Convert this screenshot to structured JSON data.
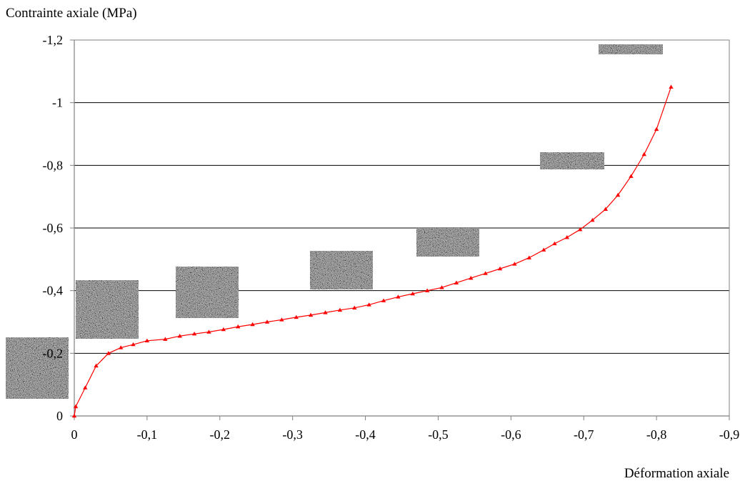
{
  "chart_data": {
    "type": "line",
    "ylabel": "Contrainte axiale (MPa)",
    "xlabel": "Déformation axiale",
    "xlim": [
      0,
      -0.9
    ],
    "ylim": [
      0,
      -1.2
    ],
    "x_ticks": [
      "0",
      "-0,1",
      "-0,2",
      "-0,3",
      "-0,4",
      "-0,5",
      "-0,6",
      "-0,7",
      "-0,8",
      "-0,9"
    ],
    "y_ticks": [
      "0",
      "-0,2",
      "-0,4",
      "-0,6",
      "-0,8",
      "-1",
      "-1,2"
    ],
    "grid": "horizontal",
    "series": [
      {
        "color": "#ff0000",
        "marker": "triangle",
        "x": [
          0,
          -0.002,
          -0.015,
          -0.03,
          -0.047,
          -0.064,
          -0.081,
          -0.1,
          -0.125,
          -0.145,
          -0.165,
          -0.185,
          -0.205,
          -0.225,
          -0.245,
          -0.265,
          -0.285,
          -0.305,
          -0.325,
          -0.345,
          -0.365,
          -0.385,
          -0.405,
          -0.425,
          -0.445,
          -0.465,
          -0.485,
          -0.505,
          -0.525,
          -0.545,
          -0.565,
          -0.585,
          -0.605,
          -0.625,
          -0.645,
          -0.66,
          -0.677,
          -0.695,
          -0.712,
          -0.73,
          -0.747,
          -0.765,
          -0.783,
          -0.8,
          -0.82
        ],
        "y": [
          0,
          -0.03,
          -0.09,
          -0.16,
          -0.2,
          -0.218,
          -0.228,
          -0.24,
          -0.245,
          -0.255,
          -0.262,
          -0.268,
          -0.276,
          -0.285,
          -0.292,
          -0.3,
          -0.307,
          -0.315,
          -0.322,
          -0.33,
          -0.338,
          -0.345,
          -0.355,
          -0.368,
          -0.38,
          -0.39,
          -0.4,
          -0.41,
          -0.425,
          -0.44,
          -0.455,
          -0.47,
          -0.485,
          -0.505,
          -0.53,
          -0.55,
          -0.57,
          -0.595,
          -0.625,
          -0.66,
          -0.705,
          -0.765,
          -0.835,
          -0.915,
          -1.05
        ]
      }
    ]
  },
  "colors": {
    "series": "#ff0000",
    "grid": "#000000",
    "axis": "#808080",
    "sample": "#6e6e6e"
  },
  "sample_images": [
    "foam-sample-0",
    "foam-sample-1",
    "foam-sample-2",
    "foam-sample-3",
    "foam-sample-4",
    "foam-sample-5",
    "foam-sample-6"
  ]
}
